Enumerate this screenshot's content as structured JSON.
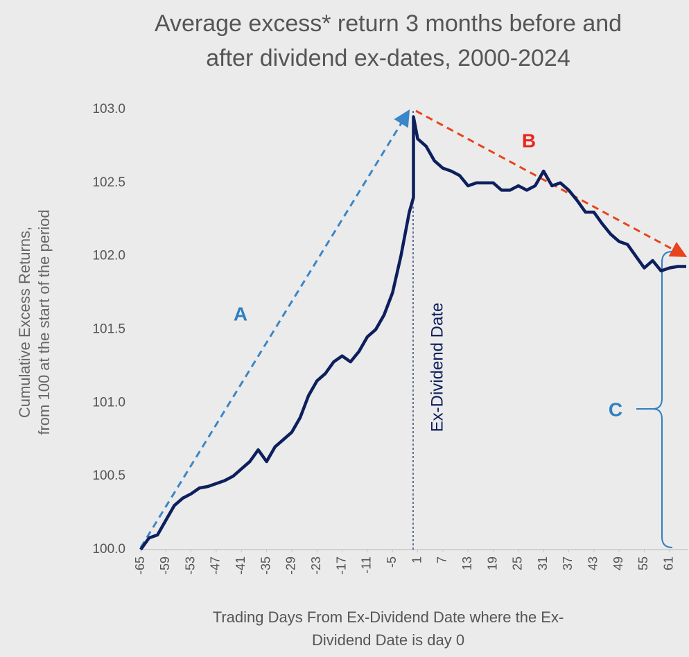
{
  "chart_data": {
    "type": "line",
    "title": [
      "Average excess* return 3 months before and",
      "after dividend ex-dates, 2000-2024"
    ],
    "y_label": [
      "Cumulative Excess Returns,",
      "from 100 at the start of the period"
    ],
    "x_label": [
      "Trading Days From Ex-Dividend Date where the Ex-",
      "Dividend Date is day 0"
    ],
    "annotations": {
      "a": "A",
      "b": "B",
      "c": "C",
      "ex_date": "Ex-Dividend Date"
    },
    "xlim": [
      -65,
      65
    ],
    "xticks": [
      -65,
      -59,
      -53,
      -47,
      -41,
      -35,
      -29,
      -23,
      -17,
      -11,
      -5,
      1,
      7,
      13,
      19,
      25,
      31,
      37,
      43,
      49,
      55,
      61
    ],
    "ylim": [
      100,
      103
    ],
    "yticks": [
      {
        "value": 100,
        "label": "100.0"
      },
      {
        "value": 100.5,
        "label": "100.5"
      },
      {
        "value": 101,
        "label": "101.0"
      },
      {
        "value": 101.5,
        "label": "101.5"
      },
      {
        "value": 102,
        "label": "102.0"
      },
      {
        "value": 102.5,
        "label": "102.5"
      },
      {
        "value": 103,
        "label": "103.0"
      }
    ],
    "series": [
      {
        "name": "Cumulative excess return",
        "color": "#0d1f5c",
        "x": [
          -65,
          -63,
          -61,
          -59,
          -57,
          -55,
          -53,
          -51,
          -49,
          -47,
          -45,
          -43,
          -41,
          -39,
          -37,
          -35,
          -33,
          -31,
          -29,
          -27,
          -25,
          -23,
          -21,
          -19,
          -17,
          -15,
          -13,
          -11,
          -9,
          -7,
          -5,
          -3,
          -1,
          0,
          0,
          1,
          3,
          5,
          7,
          9,
          11,
          13,
          15,
          17,
          19,
          21,
          23,
          25,
          27,
          29,
          31,
          33,
          35,
          37,
          39,
          41,
          43,
          45,
          47,
          49,
          51,
          53,
          55,
          57,
          59,
          61,
          63,
          65
        ],
        "values": [
          100.0,
          100.08,
          100.1,
          100.2,
          100.3,
          100.35,
          100.38,
          100.42,
          100.43,
          100.45,
          100.47,
          100.5,
          100.55,
          100.6,
          100.68,
          100.6,
          100.7,
          100.75,
          100.8,
          100.9,
          101.05,
          101.15,
          101.2,
          101.28,
          101.32,
          101.28,
          101.35,
          101.45,
          101.5,
          101.6,
          101.75,
          102.0,
          102.3,
          102.4,
          102.95,
          102.8,
          102.75,
          102.65,
          102.6,
          102.58,
          102.55,
          102.48,
          102.5,
          102.5,
          102.5,
          102.45,
          102.45,
          102.48,
          102.45,
          102.48,
          102.58,
          102.48,
          102.5,
          102.45,
          102.38,
          102.3,
          102.3,
          102.22,
          102.15,
          102.1,
          102.08,
          102.0,
          101.92,
          101.97,
          101.9,
          101.92,
          101.93,
          101.93
        ]
      }
    ]
  }
}
